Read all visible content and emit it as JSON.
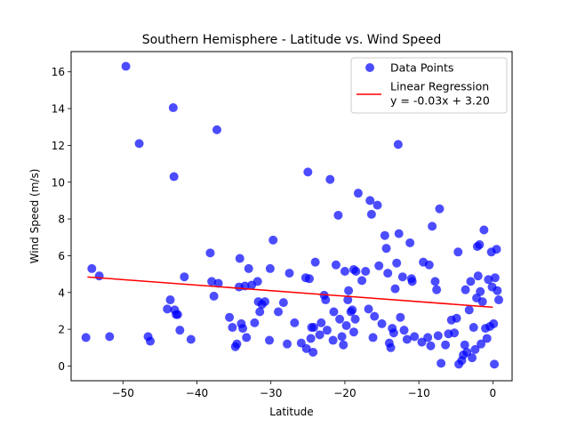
{
  "chart_data": {
    "type": "scatter",
    "title": "Southern Hemisphere - Latitude vs. Wind Speed",
    "xlabel": "Latitude",
    "ylabel": "Wind Speed (m/s)",
    "xlim": [
      -57,
      2.6
    ],
    "ylim": [
      -0.8,
      17.1
    ],
    "xticks": [
      -50,
      -40,
      -30,
      -20,
      -10,
      0
    ],
    "yticks": [
      0,
      2,
      4,
      6,
      8,
      10,
      12,
      14,
      16
    ],
    "grid": false,
    "legend_position": "top-right",
    "series": [
      {
        "name": "Data Points",
        "kind": "scatter",
        "color": "#0000ff",
        "alpha": 0.7,
        "points": [
          [
            -55,
            1.55
          ],
          [
            -54.2,
            5.3
          ],
          [
            -53.2,
            4.9
          ],
          [
            -51.8,
            1.6
          ],
          [
            -49.6,
            16.3
          ],
          [
            -47.8,
            12.1
          ],
          [
            -46.6,
            1.6
          ],
          [
            -46.3,
            1.35
          ],
          [
            -44,
            3.1
          ],
          [
            -43.6,
            3.6
          ],
          [
            -43.2,
            14.05
          ],
          [
            -43.1,
            10.3
          ],
          [
            -43,
            3.05
          ],
          [
            -42.8,
            2.8
          ],
          [
            -42.6,
            2.8
          ],
          [
            -42.3,
            1.95
          ],
          [
            -41.7,
            4.85
          ],
          [
            -40.8,
            1.45
          ],
          [
            -38.2,
            6.15
          ],
          [
            -38,
            4.6
          ],
          [
            -37.7,
            3.8
          ],
          [
            -37.3,
            12.85
          ],
          [
            -37.1,
            4.5
          ],
          [
            -35.6,
            2.65
          ],
          [
            -35.2,
            2.1
          ],
          [
            -34.8,
            1.05
          ],
          [
            -34.6,
            1.2
          ],
          [
            -34.3,
            4.3
          ],
          [
            -34.2,
            5.85
          ],
          [
            -34,
            2.3
          ],
          [
            -33.8,
            2.05
          ],
          [
            -33.5,
            4.35
          ],
          [
            -33.3,
            1.55
          ],
          [
            -33,
            5.3
          ],
          [
            -32.6,
            4.4
          ],
          [
            -32.2,
            2.35
          ],
          [
            -31.8,
            4.6
          ],
          [
            -31.7,
            3.5
          ],
          [
            -31.5,
            2.95
          ],
          [
            -31.2,
            3.35
          ],
          [
            -30.8,
            3.5
          ],
          [
            -30.2,
            1.4
          ],
          [
            -30.1,
            5.3
          ],
          [
            -29.7,
            6.85
          ],
          [
            -29,
            2.95
          ],
          [
            -28.3,
            3.45
          ],
          [
            -27.8,
            1.2
          ],
          [
            -27.5,
            5.05
          ],
          [
            -26.8,
            2.35
          ],
          [
            -25.9,
            1.25
          ],
          [
            -25.3,
            4.8
          ],
          [
            -25.2,
            0.95
          ],
          [
            -25,
            10.55
          ],
          [
            -24.8,
            4.75
          ],
          [
            -24.6,
            1.5
          ],
          [
            -24.5,
            2.1
          ],
          [
            -24.3,
            0.75
          ],
          [
            -24.2,
            2.1
          ],
          [
            -24,
            5.65
          ],
          [
            -23.4,
            1.7
          ],
          [
            -23.2,
            2.35
          ],
          [
            -22.8,
            3.85
          ],
          [
            -22.6,
            3.6
          ],
          [
            -22.4,
            1.95
          ],
          [
            -22,
            10.15
          ],
          [
            -21.6,
            1.4
          ],
          [
            -21.5,
            2.95
          ],
          [
            -21.2,
            5.5
          ],
          [
            -20.9,
            8.2
          ],
          [
            -20.7,
            2.55
          ],
          [
            -20.4,
            1.6
          ],
          [
            -20.2,
            1.15
          ],
          [
            -20,
            5.15
          ],
          [
            -19.8,
            2.2
          ],
          [
            -19.6,
            3.6
          ],
          [
            -19.5,
            4.1
          ],
          [
            -19.2,
            2.95
          ],
          [
            -19,
            3.05
          ],
          [
            -18.8,
            1.85
          ],
          [
            -18.8,
            5.25
          ],
          [
            -18.6,
            2.55
          ],
          [
            -18.5,
            5.15
          ],
          [
            -18.2,
            9.4
          ],
          [
            -17.7,
            4.65
          ],
          [
            -17.2,
            5.15
          ],
          [
            -16.8,
            3.1
          ],
          [
            -16.6,
            9.0
          ],
          [
            -16.4,
            8.25
          ],
          [
            -16.2,
            1.55
          ],
          [
            -16,
            2.7
          ],
          [
            -15.6,
            8.75
          ],
          [
            -15.4,
            5.45
          ],
          [
            -15,
            2.3
          ],
          [
            -14.6,
            7.1
          ],
          [
            -14.4,
            6.4
          ],
          [
            -14.2,
            5.05
          ],
          [
            -14,
            1.25
          ],
          [
            -13.8,
            1.0
          ],
          [
            -13.6,
            2.05
          ],
          [
            -13.4,
            1.8
          ],
          [
            -13.2,
            4.2
          ],
          [
            -13,
            5.6
          ],
          [
            -12.8,
            12.05
          ],
          [
            -12.7,
            7.2
          ],
          [
            -12.5,
            2.65
          ],
          [
            -12.2,
            4.85
          ],
          [
            -12,
            1.95
          ],
          [
            -11.6,
            1.45
          ],
          [
            -11.2,
            6.7
          ],
          [
            -11,
            4.75
          ],
          [
            -10.9,
            4.6
          ],
          [
            -10.6,
            1.6
          ],
          [
            -9.6,
            1.3
          ],
          [
            -9.4,
            5.65
          ],
          [
            -8.8,
            1.55
          ],
          [
            -8.6,
            5.5
          ],
          [
            -8.4,
            1.1
          ],
          [
            -8.2,
            7.6
          ],
          [
            -7.8,
            4.6
          ],
          [
            -7.6,
            4.15
          ],
          [
            -7.4,
            1.65
          ],
          [
            -7.2,
            8.55
          ],
          [
            -7,
            0.15
          ],
          [
            -6.4,
            1.15
          ],
          [
            -6,
            1.75
          ],
          [
            -5.6,
            2.5
          ],
          [
            -5.2,
            1.8
          ],
          [
            -4.9,
            2.6
          ],
          [
            -4.7,
            6.2
          ],
          [
            -4.6,
            0.1
          ],
          [
            -4.2,
            0.3
          ],
          [
            -4,
            0.6
          ],
          [
            -3.8,
            1.15
          ],
          [
            -3.7,
            4.15
          ],
          [
            -3.5,
            0.75
          ],
          [
            -3.2,
            3.05
          ],
          [
            -3,
            4.6
          ],
          [
            -2.8,
            0.45
          ],
          [
            -2.6,
            2.1
          ],
          [
            -2.4,
            0.9
          ],
          [
            -2.2,
            3.7
          ],
          [
            -2.1,
            6.5
          ],
          [
            -2,
            4.9
          ],
          [
            -1.8,
            6.6
          ],
          [
            -1.7,
            4.05
          ],
          [
            -1.6,
            1.2
          ],
          [
            -1.4,
            3.5
          ],
          [
            -1.2,
            7.4
          ],
          [
            -1,
            2.05
          ],
          [
            -0.8,
            1.5
          ],
          [
            -0.6,
            4.7
          ],
          [
            -0.4,
            2.15
          ],
          [
            -0.2,
            6.2
          ],
          [
            -0.1,
            4.3
          ],
          [
            0.1,
            2.3
          ],
          [
            0.2,
            0.1
          ],
          [
            0.3,
            4.8
          ],
          [
            0.5,
            6.35
          ],
          [
            0.6,
            4.1
          ],
          [
            0.8,
            3.6
          ]
        ]
      },
      {
        "name": "Linear Regression",
        "kind": "line",
        "color": "#ff0000",
        "slope": -0.03,
        "intercept": 3.2,
        "x_range": [
          -54.8,
          0
        ]
      }
    ],
    "legend": [
      {
        "label": "Data Points"
      },
      {
        "label": "Linear Regression"
      },
      {
        "label": "y = -0.03x + 3.20"
      }
    ]
  }
}
